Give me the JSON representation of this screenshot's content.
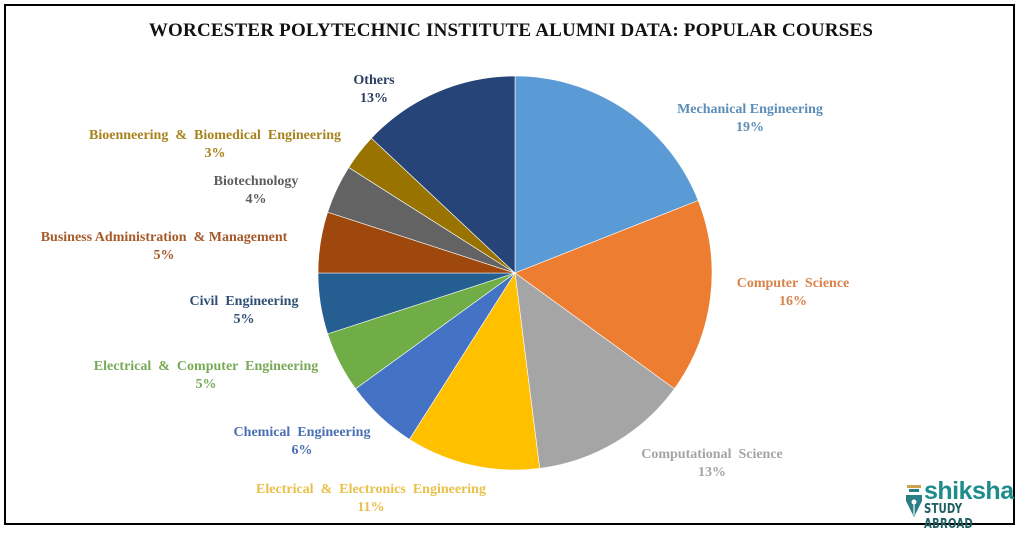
{
  "title": "WORCESTER POLYTECHNIC INSTITUTE ALUMNI DATA: POPULAR COURSES",
  "logo": {
    "brand": "shiksha",
    "tagline": "STUDY ABROAD",
    "icon": "pen-nib-icon"
  },
  "chart_data": {
    "type": "pie",
    "title": "WORCESTER POLYTECHNIC INSTITUTE ALUMNI DATA: POPULAR COURSES",
    "start_angle": "12 o'clock, clockwise",
    "categories": [
      "Mechanical Engineering",
      "Computer Science",
      "Computational Science",
      "Electrical & Electronics Engineering",
      "Chemical Engineering",
      "Electrical & Computer Engineering",
      "Civil Engineering",
      "Business Administration & Management",
      "Biotechnology",
      "Bioenneering & Biomedical Engineering",
      "Others"
    ],
    "values": [
      19,
      16,
      13,
      11,
      6,
      5,
      5,
      5,
      4,
      3,
      13
    ],
    "unit": "%",
    "colors": [
      "#5b9bd5",
      "#ed7d31",
      "#a5a5a5",
      "#ffc000",
      "#4472c4",
      "#70ad47",
      "#255e91",
      "#9e480e",
      "#636363",
      "#997300",
      "#264478"
    ],
    "label_colors": [
      "#5b8db8",
      "#d9824a",
      "#a5a5a5",
      "#e8c04a",
      "#4a6fb5",
      "#78a956",
      "#2f4f74",
      "#a55a2a",
      "#5e5e5e",
      "#a8821c",
      "#2c3f63"
    ],
    "legend": "none (data labels with category name and percentage)"
  },
  "labels": [
    {
      "name": "Mechanical Engineering",
      "pct": "19%"
    },
    {
      "name": "Computer  Science",
      "pct": "16%"
    },
    {
      "name": "Computational  Science",
      "pct": "13%"
    },
    {
      "name": "Electrical  &  Electronics  Engineering",
      "pct": "11%"
    },
    {
      "name": "Chemical  Engineering",
      "pct": "6%"
    },
    {
      "name": "Electrical  &  Computer  Engineering",
      "pct": "5%"
    },
    {
      "name": "Civil  Engineering",
      "pct": "5%"
    },
    {
      "name": "Business Administration  & Management",
      "pct": "5%"
    },
    {
      "name": "Biotechnology",
      "pct": "4%"
    },
    {
      "name": "Bioenneering  &  Biomedical  Engineering",
      "pct": "3%"
    },
    {
      "name": "Others",
      "pct": "13%"
    }
  ]
}
